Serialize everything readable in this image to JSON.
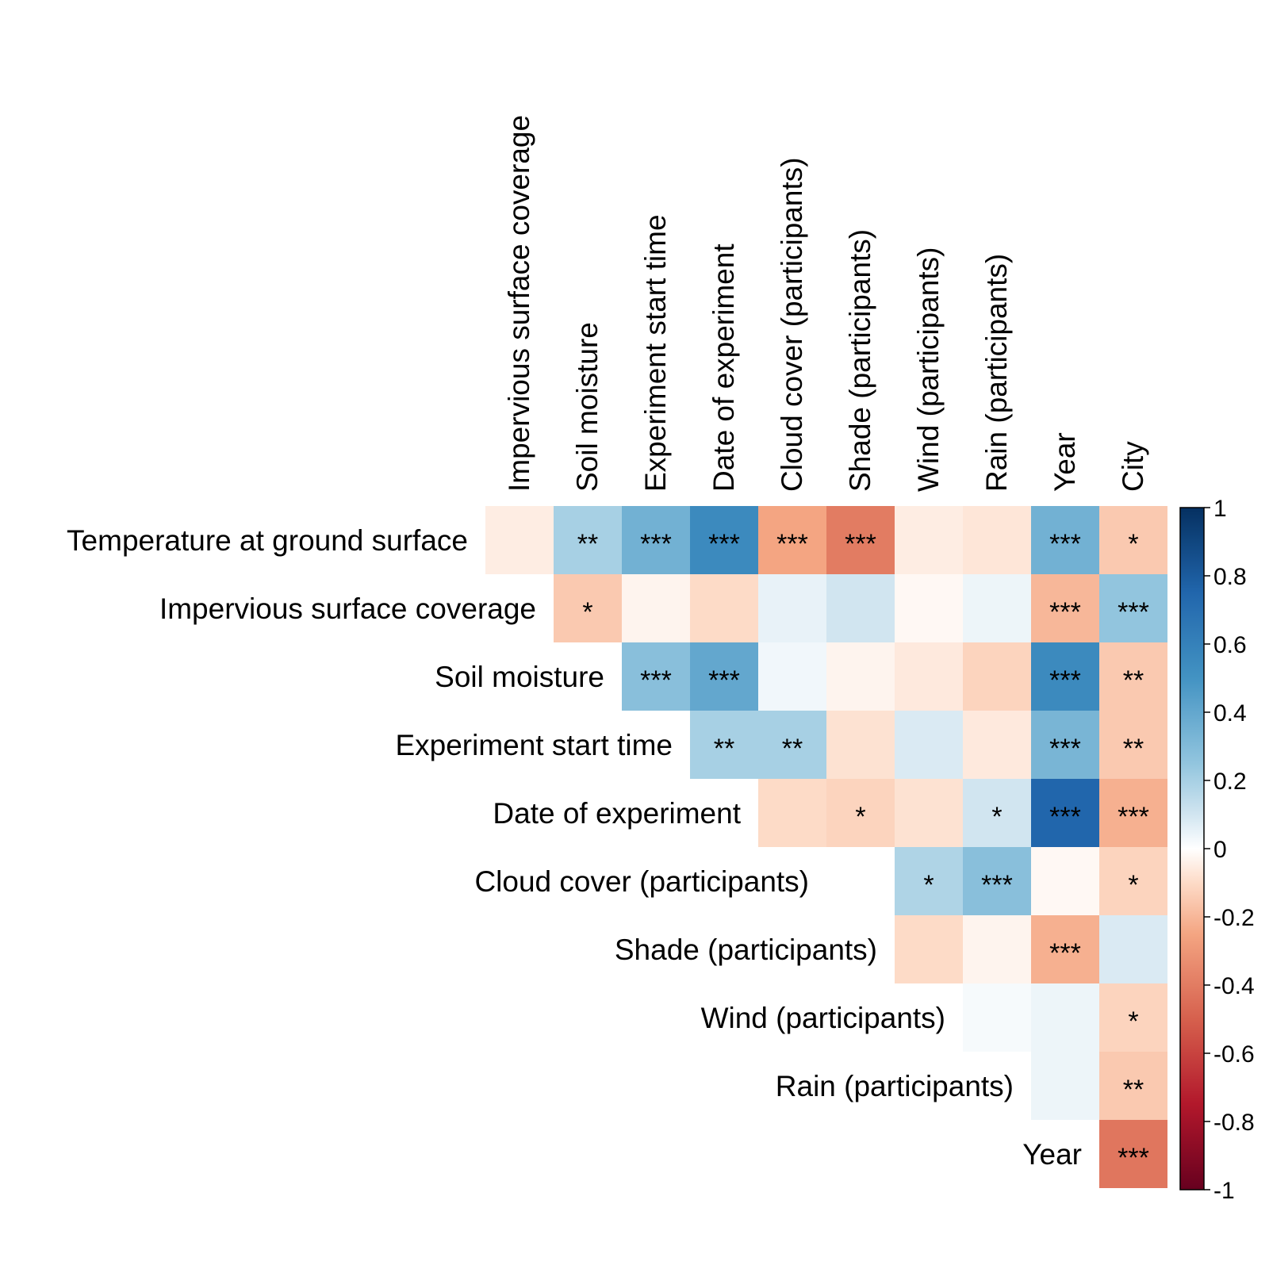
{
  "chart_data": {
    "type": "heatmap",
    "row_labels": [
      "Temperature at ground surface",
      "Impervious surface coverage",
      "Soil moisture",
      "Experiment start time",
      "Date of experiment",
      "Cloud cover (participants)",
      "Shade (participants)",
      "Wind (participants)",
      "Rain (participants)",
      "Year"
    ],
    "col_labels": [
      "Impervious surface coverage",
      "Soil moisture",
      "Experiment start time",
      "Date of experiment",
      "Cloud cover (participants)",
      "Shade (participants)",
      "Wind (participants)",
      "Rain (participants)",
      "Year",
      "City"
    ],
    "cells": [
      {
        "row": 0,
        "col": 0,
        "value": -0.05,
        "sig": ""
      },
      {
        "row": 0,
        "col": 1,
        "value": 0.2,
        "sig": "**"
      },
      {
        "row": 0,
        "col": 2,
        "value": 0.35,
        "sig": "***"
      },
      {
        "row": 0,
        "col": 3,
        "value": 0.55,
        "sig": "***"
      },
      {
        "row": 0,
        "col": 4,
        "value": -0.25,
        "sig": "***"
      },
      {
        "row": 0,
        "col": 5,
        "value": -0.4,
        "sig": "***"
      },
      {
        "row": 0,
        "col": 6,
        "value": -0.05,
        "sig": ""
      },
      {
        "row": 0,
        "col": 7,
        "value": -0.07,
        "sig": ""
      },
      {
        "row": 0,
        "col": 8,
        "value": 0.35,
        "sig": "***"
      },
      {
        "row": 0,
        "col": 9,
        "value": -0.15,
        "sig": "*"
      },
      {
        "row": 1,
        "col": 1,
        "value": -0.15,
        "sig": "*"
      },
      {
        "row": 1,
        "col": 2,
        "value": -0.03,
        "sig": ""
      },
      {
        "row": 1,
        "col": 3,
        "value": -0.1,
        "sig": ""
      },
      {
        "row": 1,
        "col": 4,
        "value": 0.05,
        "sig": ""
      },
      {
        "row": 1,
        "col": 5,
        "value": 0.1,
        "sig": ""
      },
      {
        "row": 1,
        "col": 6,
        "value": -0.02,
        "sig": ""
      },
      {
        "row": 1,
        "col": 7,
        "value": 0.04,
        "sig": ""
      },
      {
        "row": 1,
        "col": 8,
        "value": -0.2,
        "sig": "***"
      },
      {
        "row": 1,
        "col": 9,
        "value": 0.25,
        "sig": "***"
      },
      {
        "row": 2,
        "col": 2,
        "value": 0.28,
        "sig": "***"
      },
      {
        "row": 2,
        "col": 3,
        "value": 0.4,
        "sig": "***"
      },
      {
        "row": 2,
        "col": 4,
        "value": 0.03,
        "sig": ""
      },
      {
        "row": 2,
        "col": 5,
        "value": -0.03,
        "sig": ""
      },
      {
        "row": 2,
        "col": 6,
        "value": -0.06,
        "sig": ""
      },
      {
        "row": 2,
        "col": 7,
        "value": -0.12,
        "sig": ""
      },
      {
        "row": 2,
        "col": 8,
        "value": 0.55,
        "sig": "***"
      },
      {
        "row": 2,
        "col": 9,
        "value": -0.15,
        "sig": "**"
      },
      {
        "row": 3,
        "col": 3,
        "value": 0.2,
        "sig": "**"
      },
      {
        "row": 3,
        "col": 4,
        "value": 0.2,
        "sig": "**"
      },
      {
        "row": 3,
        "col": 5,
        "value": -0.08,
        "sig": ""
      },
      {
        "row": 3,
        "col": 6,
        "value": 0.08,
        "sig": ""
      },
      {
        "row": 3,
        "col": 7,
        "value": -0.06,
        "sig": ""
      },
      {
        "row": 3,
        "col": 8,
        "value": 0.33,
        "sig": "***"
      },
      {
        "row": 3,
        "col": 9,
        "value": -0.15,
        "sig": "**"
      },
      {
        "row": 4,
        "col": 4,
        "value": -0.1,
        "sig": ""
      },
      {
        "row": 4,
        "col": 5,
        "value": -0.12,
        "sig": "*"
      },
      {
        "row": 4,
        "col": 6,
        "value": -0.08,
        "sig": ""
      },
      {
        "row": 4,
        "col": 7,
        "value": 0.1,
        "sig": "*"
      },
      {
        "row": 4,
        "col": 8,
        "value": 0.75,
        "sig": "***"
      },
      {
        "row": 4,
        "col": 9,
        "value": -0.22,
        "sig": "***"
      },
      {
        "row": 5,
        "col": 6,
        "value": 0.18,
        "sig": "*"
      },
      {
        "row": 5,
        "col": 7,
        "value": 0.28,
        "sig": "***"
      },
      {
        "row": 5,
        "col": 8,
        "value": -0.02,
        "sig": ""
      },
      {
        "row": 5,
        "col": 9,
        "value": -0.12,
        "sig": "*"
      },
      {
        "row": 6,
        "col": 6,
        "value": -0.1,
        "sig": ""
      },
      {
        "row": 6,
        "col": 7,
        "value": -0.03,
        "sig": ""
      },
      {
        "row": 6,
        "col": 8,
        "value": -0.22,
        "sig": "***"
      },
      {
        "row": 6,
        "col": 9,
        "value": 0.08,
        "sig": ""
      },
      {
        "row": 7,
        "col": 7,
        "value": 0.02,
        "sig": ""
      },
      {
        "row": 7,
        "col": 8,
        "value": 0.04,
        "sig": ""
      },
      {
        "row": 7,
        "col": 9,
        "value": -0.12,
        "sig": "*"
      },
      {
        "row": 8,
        "col": 8,
        "value": 0.04,
        "sig": ""
      },
      {
        "row": 8,
        "col": 9,
        "value": -0.15,
        "sig": "**"
      },
      {
        "row": 9,
        "col": 9,
        "value": -0.42,
        "sig": "***"
      }
    ],
    "colorbar": {
      "ticks": [
        "1",
        "0.8",
        "0.6",
        "0.4",
        "0.2",
        "0",
        "-0.2",
        "-0.4",
        "-0.6",
        "-0.8",
        "-1"
      ],
      "range": [
        -1,
        1
      ]
    },
    "colors": {
      "negative_max": "#67001f",
      "neutral": "#f7f7f7",
      "positive_max": "#053061"
    }
  }
}
